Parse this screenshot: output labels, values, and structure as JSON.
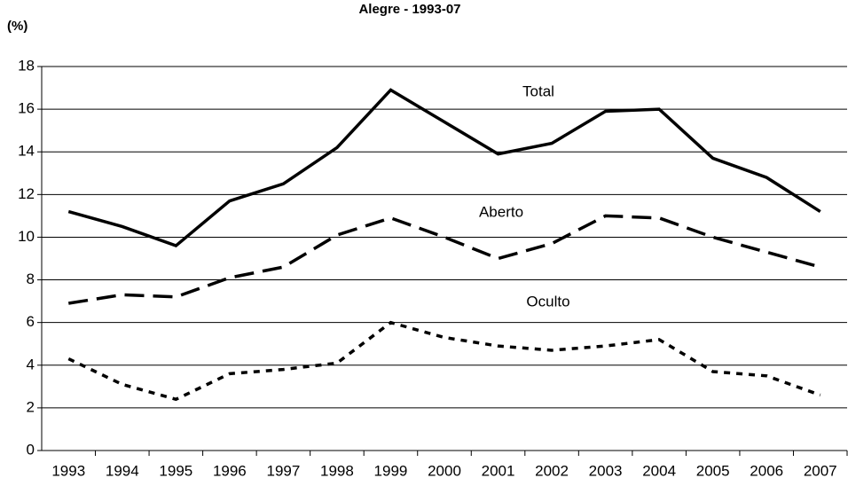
{
  "chart_data": {
    "type": "line",
    "title": "Alegre - 1993-07",
    "y_label": "(%)",
    "categories": [
      "1993",
      "1994",
      "1995",
      "1996",
      "1997",
      "1998",
      "1999",
      "2000",
      "2001",
      "2002",
      "2003",
      "2004",
      "2005",
      "2006",
      "2007"
    ],
    "series": [
      {
        "name": "Total",
        "color": "#000000",
        "dash": "solid",
        "values": [
          11.2,
          10.5,
          9.6,
          11.7,
          12.5,
          14.2,
          16.9,
          15.4,
          13.9,
          14.4,
          15.9,
          16.0,
          13.7,
          12.8,
          11.2
        ]
      },
      {
        "name": "Aberto",
        "color": "#000000",
        "dash": "dashed",
        "values": [
          6.9,
          7.3,
          7.2,
          8.1,
          8.6,
          10.1,
          10.9,
          10.0,
          9.0,
          9.7,
          11.0,
          10.9,
          10.0,
          9.3,
          8.6
        ]
      },
      {
        "name": "Oculto",
        "color": "#000000",
        "dash": "dotted",
        "values": [
          4.3,
          3.1,
          2.4,
          3.6,
          3.8,
          4.1,
          6.0,
          5.3,
          4.9,
          4.7,
          4.9,
          5.2,
          3.7,
          3.5,
          2.6
        ]
      }
    ],
    "ylim": [
      0,
      18
    ],
    "yticks": [
      0,
      2,
      4,
      6,
      8,
      10,
      12,
      14,
      16,
      18
    ],
    "grid": true
  }
}
